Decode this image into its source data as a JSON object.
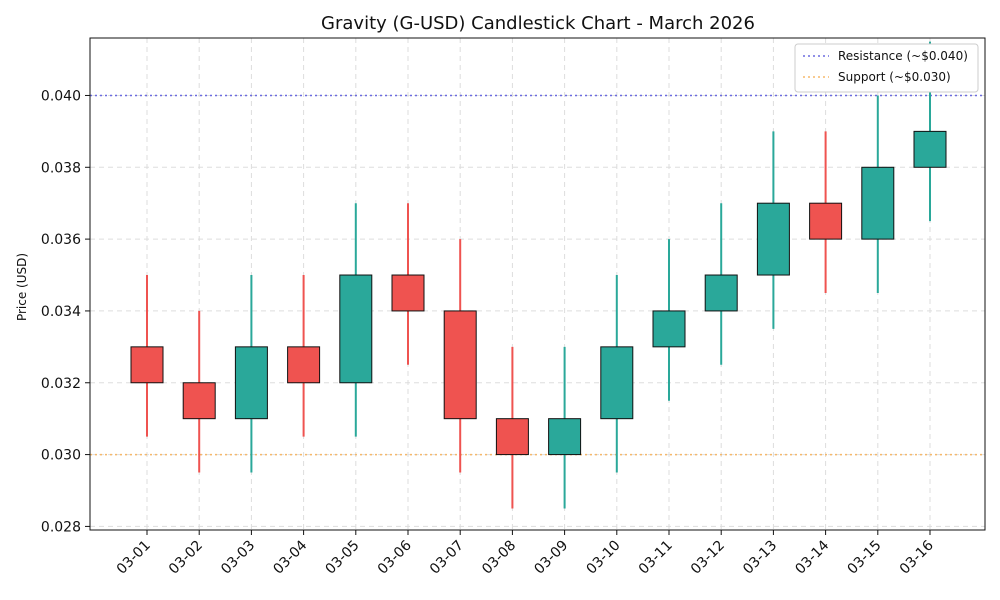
{
  "chart_data": {
    "type": "candlestick",
    "title": "Gravity (G-USD) Candlestick Chart - March 2026",
    "xlabel": "",
    "ylabel": "Price (USD)",
    "ylim": [
      0.0279,
      0.0416
    ],
    "yticks": [
      0.028,
      0.03,
      0.032,
      0.034,
      0.036,
      0.038,
      0.04
    ],
    "ytick_labels": [
      "0.028",
      "0.030",
      "0.032",
      "0.034",
      "0.036",
      "0.038",
      "0.040"
    ],
    "grid": true,
    "legend_position": "top-right",
    "categories": [
      "03-01",
      "03-02",
      "03-03",
      "03-04",
      "03-05",
      "03-06",
      "03-07",
      "03-08",
      "03-09",
      "03-10",
      "03-11",
      "03-12",
      "03-13",
      "03-14",
      "03-15",
      "03-16"
    ],
    "candles": [
      {
        "date": "03-01",
        "open": 0.033,
        "high": 0.035,
        "low": 0.0305,
        "close": 0.032
      },
      {
        "date": "03-02",
        "open": 0.032,
        "high": 0.034,
        "low": 0.0295,
        "close": 0.031
      },
      {
        "date": "03-03",
        "open": 0.031,
        "high": 0.035,
        "low": 0.0295,
        "close": 0.033
      },
      {
        "date": "03-04",
        "open": 0.033,
        "high": 0.035,
        "low": 0.0305,
        "close": 0.032
      },
      {
        "date": "03-05",
        "open": 0.032,
        "high": 0.037,
        "low": 0.0305,
        "close": 0.035
      },
      {
        "date": "03-06",
        "open": 0.035,
        "high": 0.037,
        "low": 0.0325,
        "close": 0.034
      },
      {
        "date": "03-07",
        "open": 0.034,
        "high": 0.036,
        "low": 0.0295,
        "close": 0.031
      },
      {
        "date": "03-08",
        "open": 0.031,
        "high": 0.033,
        "low": 0.0285,
        "close": 0.03
      },
      {
        "date": "03-09",
        "open": 0.03,
        "high": 0.033,
        "low": 0.0285,
        "close": 0.031
      },
      {
        "date": "03-10",
        "open": 0.031,
        "high": 0.035,
        "low": 0.0295,
        "close": 0.033
      },
      {
        "date": "03-11",
        "open": 0.033,
        "high": 0.036,
        "low": 0.0315,
        "close": 0.034
      },
      {
        "date": "03-12",
        "open": 0.034,
        "high": 0.037,
        "low": 0.0325,
        "close": 0.035
      },
      {
        "date": "03-13",
        "open": 0.035,
        "high": 0.039,
        "low": 0.0335,
        "close": 0.037
      },
      {
        "date": "03-14",
        "open": 0.037,
        "high": 0.039,
        "low": 0.0345,
        "close": 0.036
      },
      {
        "date": "03-15",
        "open": 0.036,
        "high": 0.04,
        "low": 0.0345,
        "close": 0.038
      },
      {
        "date": "03-16",
        "open": 0.038,
        "high": 0.0415,
        "low": 0.0365,
        "close": 0.039
      }
    ],
    "lines": [
      {
        "name": "Resistance (~$0.040)",
        "value": 0.04,
        "color": "#6b6bdf"
      },
      {
        "name": "Support (~$0.030)",
        "value": 0.03,
        "color": "#f5b86b"
      }
    ],
    "colors": {
      "up": "#2aa89a",
      "down": "#ef5350",
      "body_edge": "#111111",
      "grid": "#dddddd",
      "axis": "#111111"
    }
  }
}
